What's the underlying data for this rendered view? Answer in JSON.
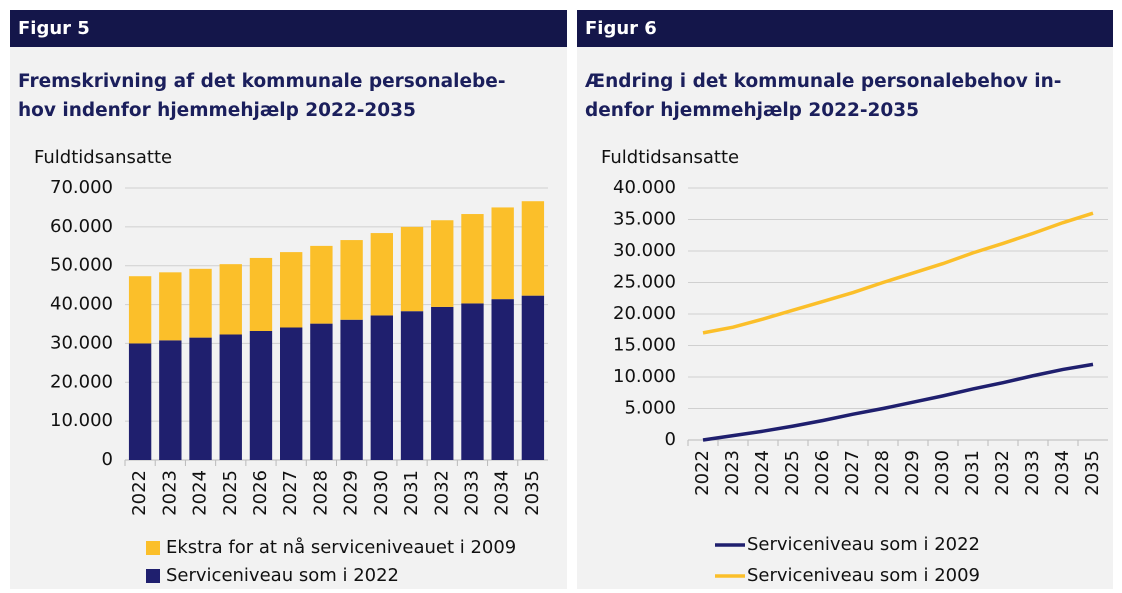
{
  "chart_data": [
    {
      "type": "bar",
      "stacked": true,
      "header": "Figur 5",
      "title": [
        "Fremskrivning af det kommunale personalebe-",
        "hov indenfor hjemmehjælp 2022-2035"
      ],
      "y_label": "Fuldtidsansatte",
      "categories": [
        "2022",
        "2023",
        "2024",
        "2025",
        "2026",
        "2027",
        "2028",
        "2029",
        "2030",
        "2031",
        "2032",
        "2033",
        "2034",
        "2035"
      ],
      "series": [
        {
          "name": "Serviceniveau som i 2022",
          "color": "#1f1f6e",
          "values": [
            30000,
            30800,
            31500,
            32300,
            33200,
            34100,
            35100,
            36100,
            37200,
            38300,
            39400,
            40300,
            41400,
            42300
          ]
        },
        {
          "name": "Ekstra for at nå serviceniveauet i 2009",
          "color": "#fbbf2a",
          "values": [
            17300,
            17500,
            17700,
            18100,
            18800,
            19400,
            20000,
            20500,
            21200,
            21700,
            22300,
            23000,
            23600,
            24300
          ]
        }
      ],
      "ylim": [
        0,
        70000
      ],
      "yticks": [
        0,
        {
          "value": 10000,
          "label": "10.000"
        },
        {
          "value": 20000,
          "label": "20.000"
        },
        {
          "value": 30000,
          "label": "30.000"
        },
        {
          "value": 40000,
          "label": "40.000"
        },
        {
          "value": 50000,
          "label": "50.000"
        },
        {
          "value": 60000,
          "label": "60.000"
        },
        {
          "value": 70000,
          "label": "70.000"
        }
      ],
      "grid": true
    },
    {
      "type": "line",
      "header": "Figur 6",
      "title": [
        "Ændring i det kommunale personalebehov in-",
        "denfor hjemmehjælp 2022-2035"
      ],
      "y_label": "Fuldtidsansatte",
      "categories": [
        "2022",
        "2023",
        "2024",
        "2025",
        "2026",
        "2027",
        "2028",
        "2029",
        "2030",
        "2031",
        "2032",
        "2033",
        "2034",
        "2035"
      ],
      "series": [
        {
          "name": "Serviceniveau som i 2022",
          "color": "#1f1f6e",
          "values": [
            0,
            700,
            1400,
            2200,
            3100,
            4100,
            5000,
            6000,
            7000,
            8100,
            9100,
            10200,
            11200,
            12000
          ]
        },
        {
          "name": "Serviceniveau som i 2009",
          "color": "#fbbf2a",
          "values": [
            17000,
            17900,
            19200,
            20600,
            22000,
            23400,
            25000,
            26500,
            28000,
            29700,
            31200,
            32800,
            34500,
            36000
          ]
        }
      ],
      "ylim": [
        0,
        40000
      ],
      "yticks": [
        0,
        {
          "value": 5000,
          "label": "5.000"
        },
        {
          "value": 10000,
          "label": "10.000"
        },
        {
          "value": 15000,
          "label": "15.000"
        },
        {
          "value": 20000,
          "label": "20.000"
        },
        {
          "value": 25000,
          "label": "25.000"
        },
        {
          "value": 30000,
          "label": "30.000"
        },
        {
          "value": 35000,
          "label": "35.000"
        },
        {
          "value": 40000,
          "label": "40.000"
        }
      ],
      "grid": true
    }
  ]
}
